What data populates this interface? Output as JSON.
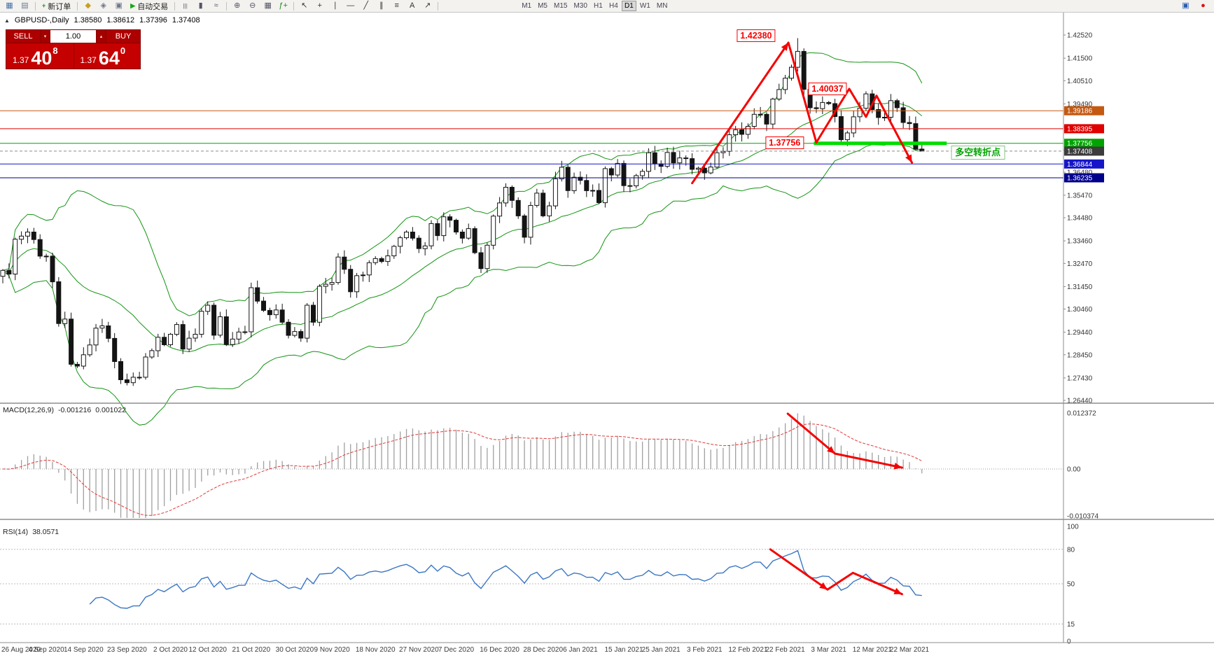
{
  "toolbar": {
    "items": [
      {
        "t": "icon",
        "name": "new-chart-icon",
        "g": "▦",
        "c": "#4a6fa5"
      },
      {
        "t": "icon",
        "name": "profiles-icon",
        "g": "▤",
        "c": "#6b7b8c"
      },
      {
        "t": "sep"
      },
      {
        "t": "btn",
        "name": "new-order-button",
        "g": "+",
        "c": "#129a12",
        "label": "新订单"
      },
      {
        "t": "sep"
      },
      {
        "t": "icon",
        "name": "metaeditor-icon",
        "g": "◆",
        "c": "#c8a020"
      },
      {
        "t": "icon",
        "name": "options-icon",
        "g": "◈",
        "c": "#70788a"
      },
      {
        "t": "icon",
        "name": "fullscreen-icon",
        "g": "▣",
        "c": "#70788a"
      },
      {
        "t": "btn",
        "name": "auto-trading-button",
        "g": "▶",
        "c": "#18a818",
        "label": "自动交易"
      },
      {
        "t": "sep"
      },
      {
        "t": "icon",
        "name": "bar-chart-icon",
        "g": "|||",
        "c": "#556"
      },
      {
        "t": "icon",
        "name": "candlestick-chart-icon",
        "g": "▮",
        "c": "#556"
      },
      {
        "t": "icon",
        "name": "line-chart-icon",
        "g": "≈",
        "c": "#556"
      },
      {
        "t": "sep"
      },
      {
        "t": "icon",
        "name": "zoom-in-icon",
        "g": "⊕",
        "c": "#556"
      },
      {
        "t": "icon",
        "name": "zoom-out-icon",
        "g": "⊖",
        "c": "#556"
      },
      {
        "t": "icon",
        "name": "tile-windows-icon",
        "g": "▦",
        "c": "#556"
      },
      {
        "t": "icon",
        "name": "indicators-icon",
        "g": "ƒ+",
        "c": "#1a8a1a"
      },
      {
        "t": "sep"
      },
      {
        "t": "icon",
        "name": "cursor-icon",
        "g": "↖",
        "c": "#333"
      },
      {
        "t": "icon",
        "name": "crosshair-icon",
        "g": "+",
        "c": "#333"
      },
      {
        "t": "icon",
        "name": "vertical-line-icon",
        "g": "∣",
        "c": "#333"
      },
      {
        "t": "icon",
        "name": "horizontal-line-icon",
        "g": "―",
        "c": "#333"
      },
      {
        "t": "icon",
        "name": "trendline-icon",
        "g": "╱",
        "c": "#333"
      },
      {
        "t": "icon",
        "name": "channel-icon",
        "g": "∥",
        "c": "#333"
      },
      {
        "t": "icon",
        "name": "fibonacci-icon",
        "g": "≡",
        "c": "#333"
      },
      {
        "t": "icon",
        "name": "text-tool-icon",
        "g": "A",
        "c": "#333"
      },
      {
        "t": "icon",
        "name": "arrows-tool-icon",
        "g": "↗",
        "c": "#333"
      },
      {
        "t": "sep"
      }
    ],
    "timeframes": [
      "M1",
      "M5",
      "M15",
      "M30",
      "H1",
      "H4",
      "D1",
      "W1",
      "MN"
    ],
    "active_timeframe": "D1",
    "right_icons": [
      {
        "name": "chart-shift-icon",
        "g": "▣",
        "c": "#2a5db0"
      },
      {
        "name": "alert-badge-icon",
        "g": "●",
        "c": "#e01010"
      }
    ]
  },
  "symbol_bar": {
    "collapse": "▲",
    "title": "GBPUSD-,Daily",
    "open": "1.38580",
    "high": "1.38612",
    "low": "1.37396",
    "close": "1.37408"
  },
  "trade_panel": {
    "sell_label": "SELL",
    "buy_label": "BUY",
    "volume": "1.00",
    "down_glyph": "▾",
    "up_glyph": "▴",
    "sell_prefix": "1.37",
    "sell_main": "40",
    "sell_sup": "8",
    "buy_prefix": "1.37",
    "buy_main": "64",
    "buy_sup": "0"
  },
  "chart_data": {
    "type": "candlestick",
    "symbol": "GBPUSD",
    "timeframe": "Daily",
    "y_max": 1.4252,
    "y_min": 1.2644,
    "y_ticks": [
      "1.42520",
      "1.41500",
      "1.40510",
      "1.39490",
      "1.38480",
      "1.37460",
      "1.36480",
      "1.35470",
      "1.34480",
      "1.33460",
      "1.32470",
      "1.31450",
      "1.30460",
      "1.29440",
      "1.28450",
      "1.27430",
      "1.26440"
    ],
    "x_labels": [
      [
        "26 Aug 2020",
        0
      ],
      [
        "4 Sep 2020",
        7
      ],
      [
        "14 Sep 2020",
        13
      ],
      [
        "23 Sep 2020",
        20
      ],
      [
        "2 Oct 2020",
        27
      ],
      [
        "12 Oct 2020",
        33
      ],
      [
        "21 Oct 2020",
        40
      ],
      [
        "30 Oct 2020",
        47
      ],
      [
        "9 Nov 2020",
        53
      ],
      [
        "18 Nov 2020",
        60
      ],
      [
        "27 Nov 2020",
        67
      ],
      [
        "7 Dec 2020",
        73
      ],
      [
        "16 Dec 2020",
        80
      ],
      [
        "28 Dec 2020",
        87
      ],
      [
        "6 Jan 2021",
        93
      ],
      [
        "15 Jan 2021",
        100
      ],
      [
        "25 Jan 2021",
        106
      ],
      [
        "3 Feb 2021",
        113
      ],
      [
        "12 Feb 2021",
        120
      ],
      [
        "22 Feb 2021",
        126
      ],
      [
        "3 Mar 2021",
        133
      ],
      [
        "12 Mar 2021",
        140
      ],
      [
        "22 Mar 2021",
        146
      ]
    ],
    "first_open": 1.319,
    "closes": [
      1.3216,
      1.32,
      1.3353,
      1.3367,
      1.3385,
      1.3352,
      1.3279,
      1.3279,
      1.3166,
      1.2982,
      1.3002,
      1.2803,
      1.2795,
      1.2845,
      1.2888,
      1.2962,
      1.2972,
      1.2917,
      1.2815,
      1.2735,
      1.2722,
      1.2746,
      1.2746,
      1.2835,
      1.2863,
      1.2922,
      1.2889,
      1.2935,
      1.2978,
      1.287,
      1.2918,
      1.2935,
      1.3036,
      1.3063,
      1.2931,
      1.3012,
      1.289,
      1.2914,
      1.2945,
      1.2946,
      1.314,
      1.3081,
      1.304,
      1.3021,
      1.3042,
      1.2988,
      1.293,
      1.2947,
      1.2918,
      1.3063,
      1.2988,
      1.3146,
      1.3155,
      1.3163,
      1.3275,
      1.3221,
      1.3122,
      1.3193,
      1.3196,
      1.325,
      1.3268,
      1.3255,
      1.328,
      1.3322,
      1.336,
      1.3385,
      1.3358,
      1.3312,
      1.3324,
      1.3422,
      1.3369,
      1.3452,
      1.3437,
      1.3385,
      1.3358,
      1.34,
      1.3294,
      1.3224,
      1.3327,
      1.3455,
      1.3513,
      1.3582,
      1.3524,
      1.3456,
      1.3362,
      1.3502,
      1.3556,
      1.3456,
      1.35,
      1.3619,
      1.367,
      1.3567,
      1.3626,
      1.3612,
      1.3567,
      1.3568,
      1.3514,
      1.3664,
      1.3636,
      1.3687,
      1.3589,
      1.3588,
      1.3633,
      1.3652,
      1.3734,
      1.3685,
      1.3674,
      1.3735,
      1.3689,
      1.3711,
      1.3708,
      1.3661,
      1.3666,
      1.3645,
      1.3671,
      1.3734,
      1.374,
      1.3813,
      1.3835,
      1.3815,
      1.385,
      1.3903,
      1.3903,
      1.386,
      1.397,
      1.4012,
      1.4062,
      1.411,
      1.418,
      1.4013,
      1.3932,
      1.3928,
      1.3955,
      1.395,
      1.3893,
      1.3791,
      1.3821,
      1.3892,
      1.393,
      1.3993,
      1.3924,
      1.3889,
      1.389,
      1.3963,
      1.3932,
      1.3867,
      1.3862,
      1.375,
      1.3741
    ],
    "wick_overrides": {
      "128": {
        "high": 1.4238
      },
      "135": {
        "low": 1.37756
      },
      "148": {
        "low": 1.37396
      }
    },
    "bollinger": {
      "period": 20,
      "deviation": 2,
      "color": "#149414"
    },
    "colors": {
      "bull": "#ffffff",
      "bear": "#141414",
      "outline": "#141414"
    },
    "hlines": [
      {
        "price": 1.39186,
        "color": "#c45911",
        "tag": "1.39186"
      },
      {
        "price": 1.38395,
        "color": "#e00000",
        "tag": "1.38395"
      },
      {
        "price": 1.37756,
        "color": "#00a400",
        "tag": "1.37756"
      },
      {
        "price": 1.36844,
        "color": "#1616c8",
        "tag": "1.36844"
      },
      {
        "price": 1.36235,
        "color": "#00008b",
        "tag": "1.36235"
      }
    ],
    "current_price": {
      "price": 1.37408,
      "tag": "1.37408",
      "tag_bg": "#3c3c3c",
      "line_color": "#8c8c8c"
    },
    "support_segment": {
      "price": 1.37756,
      "from_index": 130.6,
      "to_index": 152,
      "color": "#00dc00",
      "width": 5
    },
    "zigzag": {
      "color": "#f50000",
      "width": 3,
      "points": [
        [
          111,
          1.36
        ],
        [
          126.5,
          1.4218
        ],
        [
          131,
          1.3779
        ],
        [
          136.3,
          1.4015
        ],
        [
          139,
          1.3892
        ],
        [
          140.7,
          1.3985
        ],
        [
          146.4,
          1.369
        ]
      ],
      "heads": [
        1,
        6
      ]
    },
    "labels": [
      {
        "text": "1.42380",
        "index": 121.3,
        "price": 1.4249
      },
      {
        "text": "1.40037",
        "index": 132.8,
        "price": 1.4016
      },
      {
        "text": "1.37756",
        "index": 125.9,
        "price": 1.3777
      }
    ],
    "note": {
      "text": "多空转折点",
      "index": 157,
      "price": 1.3735
    }
  },
  "macd": {
    "title": "MACD(12,26,9)",
    "value1": "-0.001216",
    "value2": "0.001022",
    "max": 0.012372,
    "min": -0.010374,
    "axis": [
      {
        "label": "0.012372",
        "value": 0.012372
      },
      {
        "label": "0.00",
        "value": 0
      },
      {
        "label": "-0.010374",
        "value": -0.010374
      }
    ],
    "histogram_color": "#a0a0a0",
    "signal_color": "#e03a3a",
    "arrows": {
      "color": "#f50000",
      "width": 3,
      "points": [
        [
          126.4,
          0.01222
        ],
        [
          134,
          0.0034
        ],
        [
          144.8,
          0.0003
        ]
      ],
      "heads": [
        1,
        2
      ]
    }
  },
  "rsi": {
    "title": "RSI(14)",
    "value": "38.0571",
    "line_color": "#3b76c4",
    "axis": [
      {
        "label": "100",
        "value": 100
      },
      {
        "label": "80",
        "value": 80
      },
      {
        "label": "50",
        "value": 50
      },
      {
        "label": "15",
        "value": 15
      },
      {
        "label": "0",
        "value": 0
      }
    ],
    "levels": [
      80,
      50,
      15
    ],
    "arrows": {
      "color": "#f50000",
      "width": 3,
      "points": [
        [
          123.6,
          80
        ],
        [
          132.8,
          45
        ],
        [
          136.9,
          59.5
        ],
        [
          144.8,
          41
        ]
      ],
      "heads": [
        1,
        3
      ]
    }
  }
}
